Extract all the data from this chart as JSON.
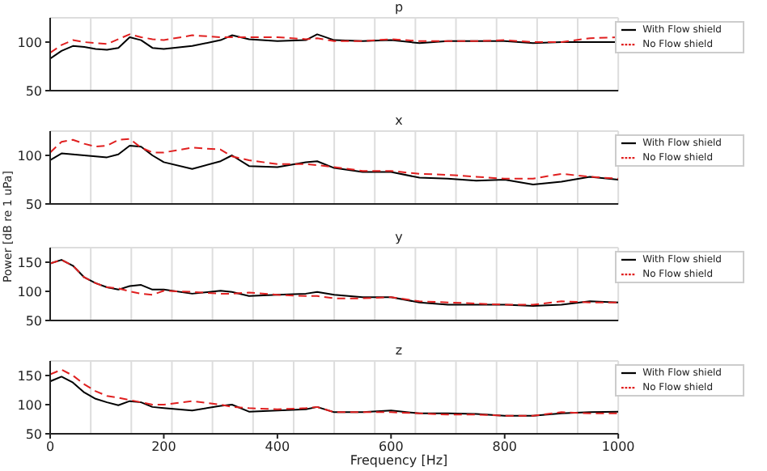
{
  "chart_data": [
    {
      "type": "line",
      "title": "p",
      "x": [
        0,
        20,
        40,
        60,
        80,
        100,
        120,
        140,
        160,
        180,
        200,
        250,
        300,
        320,
        350,
        400,
        450,
        470,
        500,
        550,
        600,
        650,
        700,
        750,
        800,
        850,
        900,
        950,
        1000
      ],
      "xlim": [
        0,
        1000
      ],
      "xticks": [
        0,
        200,
        400,
        600,
        800,
        1000
      ],
      "ylim": [
        50,
        125
      ],
      "yticks": [
        50,
        100
      ],
      "tick_labels": "y",
      "grid": true,
      "legend": "top right",
      "line_style": "solid",
      "series": [
        {
          "name": "With Flow shield",
          "color": "#000000",
          "values": [
            83,
            91,
            96,
            95,
            93,
            92,
            94,
            105,
            102,
            94,
            93,
            96,
            102,
            107,
            103,
            101,
            102,
            108,
            102,
            101,
            102,
            99,
            101,
            101,
            101,
            99,
            100,
            100,
            100
          ]
        },
        {
          "name": "No Flow shield",
          "color": "#e02020",
          "line_style": "dashed",
          "values": [
            89,
            97,
            102,
            100,
            99,
            98,
            103,
            108,
            105,
            103,
            102,
            107,
            105,
            105,
            105,
            105,
            103,
            104,
            101,
            101,
            103,
            101,
            101,
            101,
            102,
            100,
            100,
            104,
            105
          ]
        }
      ]
    },
    {
      "type": "line",
      "title": "x",
      "x": [
        0,
        20,
        40,
        60,
        80,
        100,
        120,
        140,
        160,
        180,
        200,
        250,
        300,
        320,
        350,
        400,
        450,
        470,
        500,
        550,
        600,
        650,
        700,
        750,
        800,
        850,
        900,
        950,
        1000
      ],
      "xlim": [
        0,
        1000
      ],
      "xticks": [
        0,
        200,
        400,
        600,
        800,
        1000
      ],
      "ylim": [
        50,
        125
      ],
      "yticks": [
        50,
        100
      ],
      "tick_labels": "y",
      "grid": true,
      "legend": "top right",
      "line_style": "solid",
      "series": [
        {
          "name": "With Flow shield",
          "color": "#000000",
          "values": [
            95,
            102,
            101,
            100,
            99,
            98,
            101,
            110,
            109,
            100,
            93,
            86,
            94,
            100,
            89,
            88,
            93,
            94,
            87,
            83,
            83,
            77,
            76,
            74,
            75,
            70,
            73,
            78,
            75
          ]
        },
        {
          "name": "No Flow shield",
          "color": "#e02020",
          "line_style": "dashed",
          "values": [
            103,
            114,
            116,
            112,
            109,
            110,
            116,
            117,
            108,
            103,
            103,
            108,
            106,
            99,
            95,
            91,
            91,
            90,
            88,
            84,
            84,
            81,
            80,
            78,
            76,
            76,
            81,
            78,
            76
          ]
        }
      ]
    },
    {
      "type": "line",
      "title": "y",
      "ylabel": "Power [dB re 1 uPa]",
      "x": [
        0,
        20,
        40,
        60,
        80,
        100,
        120,
        140,
        160,
        180,
        200,
        250,
        300,
        320,
        350,
        400,
        450,
        470,
        500,
        550,
        600,
        650,
        700,
        750,
        800,
        850,
        900,
        950,
        1000
      ],
      "xlim": [
        0,
        1000
      ],
      "xticks": [
        0,
        200,
        400,
        600,
        800,
        1000
      ],
      "ylim": [
        50,
        175
      ],
      "yticks": [
        50,
        100,
        150
      ],
      "tick_labels": "y",
      "grid": true,
      "legend": "top right",
      "line_style": "solid",
      "series": [
        {
          "name": "With Flow shield",
          "color": "#000000",
          "values": [
            148,
            154,
            144,
            124,
            114,
            107,
            103,
            109,
            111,
            103,
            103,
            96,
            101,
            99,
            92,
            94,
            96,
            99,
            94,
            90,
            90,
            81,
            77,
            77,
            77,
            75,
            77,
            83,
            81
          ]
        },
        {
          "name": "No Flow shield",
          "color": "#e02020",
          "line_style": "dashed",
          "values": [
            148,
            154,
            144,
            124,
            114,
            107,
            105,
            100,
            96,
            94,
            101,
            99,
            96,
            96,
            98,
            94,
            92,
            92,
            88,
            88,
            90,
            83,
            81,
            79,
            77,
            77,
            83,
            81,
            81
          ]
        }
      ]
    },
    {
      "type": "line",
      "title": "z",
      "xlabel": "Frequency [Hz]",
      "x": [
        0,
        20,
        40,
        60,
        80,
        100,
        120,
        140,
        160,
        180,
        200,
        250,
        300,
        320,
        350,
        400,
        450,
        470,
        500,
        550,
        600,
        650,
        700,
        750,
        800,
        850,
        900,
        950,
        1000
      ],
      "xlim": [
        0,
        1000
      ],
      "xticks": [
        0,
        200,
        400,
        600,
        800,
        1000
      ],
      "ylim": [
        50,
        175
      ],
      "yticks": [
        50,
        100,
        150
      ],
      "grid": true,
      "legend": "top right",
      "line_style": "solid",
      "series": [
        {
          "name": "With Flow shield",
          "color": "#000000",
          "values": [
            140,
            148,
            138,
            121,
            110,
            104,
            99,
            106,
            104,
            96,
            94,
            90,
            98,
            100,
            88,
            90,
            92,
            96,
            87,
            87,
            90,
            85,
            85,
            84,
            81,
            81,
            85,
            87,
            88
          ]
        },
        {
          "name": "No Flow shield",
          "color": "#e02020",
          "line_style": "dashed",
          "values": [
            152,
            160,
            150,
            135,
            123,
            115,
            112,
            108,
            104,
            100,
            100,
            106,
            100,
            96,
            94,
            92,
            94,
            96,
            87,
            87,
            87,
            85,
            83,
            83,
            81,
            81,
            87,
            85,
            85
          ]
        }
      ]
    }
  ]
}
